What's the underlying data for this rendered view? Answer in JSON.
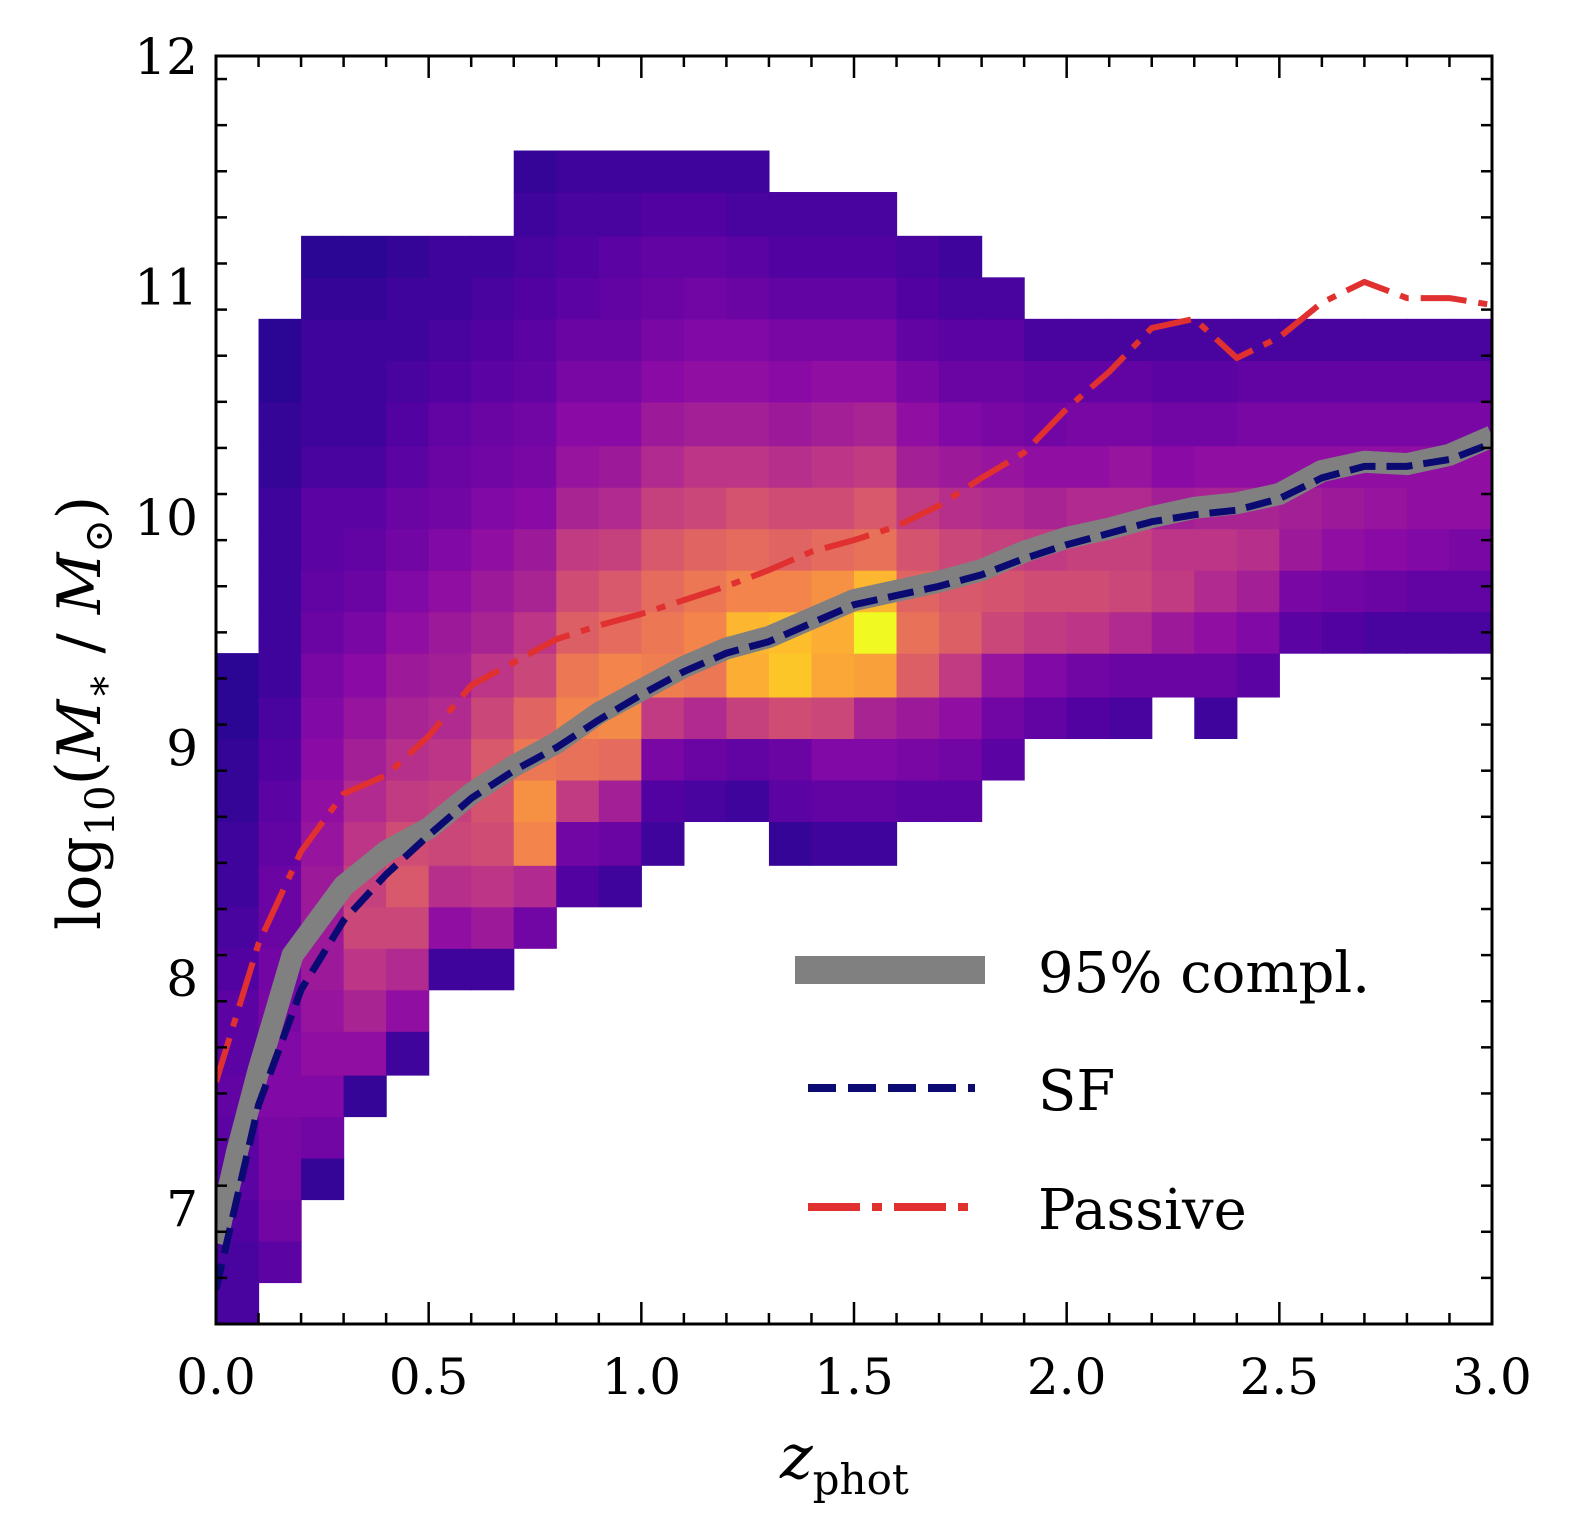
{
  "chart_data": {
    "type": "heatmap",
    "title": "",
    "xlabel": {
      "base": "z",
      "sub": "phot"
    },
    "ylabel": {
      "prefix": "log",
      "sub": "10",
      "open": "(",
      "m1": "M",
      "m1sub": "∗",
      "slash": " / ",
      "m2": "M",
      "m2sub": "⊙",
      "close": ")"
    },
    "xlim": [
      0.0,
      3.0
    ],
    "ylim": [
      6.5,
      12.0
    ],
    "xticks": [
      "0.0",
      "0.5",
      "1.0",
      "1.5",
      "2.0",
      "2.5",
      "3.0"
    ],
    "yticks": [
      "7",
      "8",
      "9",
      "10",
      "11",
      "12"
    ],
    "grid": false,
    "legend_position": "lower-right",
    "heatmap": {
      "x_bin_width": 0.1,
      "y_bins": [
        6.5,
        6.68,
        6.86,
        7.04,
        7.22,
        7.4,
        7.58,
        7.77,
        7.95,
        8.13,
        8.31,
        8.49,
        8.68,
        8.86,
        9.04,
        9.22,
        9.41,
        9.59,
        9.77,
        9.95,
        10.13,
        10.31,
        10.5,
        10.68,
        10.86,
        11.04,
        11.22,
        11.41
      ],
      "columns": [
        {
          "x": 0.0,
          "y_start": 0,
          "values": [
            0.12,
            0.12,
            0.14,
            0.16,
            0.16,
            0.18,
            0.16,
            0.16,
            0.14,
            0.12,
            0.1,
            0.1,
            0.08,
            0.08,
            0.06,
            0.06
          ]
        },
        {
          "x": 0.1,
          "y_start": 1,
          "values": [
            0.16,
            0.22,
            0.24,
            0.24,
            0.26,
            0.26,
            0.24,
            0.22,
            0.2,
            0.2,
            0.18,
            0.16,
            0.14,
            0.12,
            0.1,
            0.1,
            0.1,
            0.1,
            0.1,
            0.08,
            0.08,
            0.06,
            0.06
          ]
        },
        {
          "x": 0.2,
          "y_start": 3,
          "values": [
            0.08,
            0.22,
            0.26,
            0.3,
            0.32,
            0.34,
            0.34,
            0.34,
            0.32,
            0.3,
            0.28,
            0.26,
            0.24,
            0.2,
            0.18,
            0.16,
            0.16,
            0.12,
            0.1,
            0.1,
            0.1,
            0.08,
            0.06
          ]
        },
        {
          "x": 0.3,
          "y_start": 5,
          "values": [
            0.08,
            0.3,
            0.38,
            0.44,
            0.5,
            0.48,
            0.44,
            0.4,
            0.36,
            0.32,
            0.28,
            0.24,
            0.2,
            0.18,
            0.16,
            0.12,
            0.1,
            0.1,
            0.1,
            0.08,
            0.06
          ]
        },
        {
          "x": 0.4,
          "y_start": 6,
          "values": [
            0.1,
            0.3,
            0.4,
            0.5,
            0.56,
            0.52,
            0.46,
            0.42,
            0.38,
            0.34,
            0.3,
            0.26,
            0.22,
            0.2,
            0.16,
            0.14,
            0.12,
            0.1,
            0.1,
            0.08
          ]
        },
        {
          "x": 0.5,
          "y_start": 8,
          "values": [
            0.1,
            0.3,
            0.42,
            0.5,
            0.48,
            0.44,
            0.4,
            0.36,
            0.34,
            0.3,
            0.26,
            0.22,
            0.2,
            0.18,
            0.14,
            0.12,
            0.1,
            0.1
          ]
        },
        {
          "x": 0.6,
          "y_start": 8,
          "values": [
            0.1,
            0.34,
            0.44,
            0.52,
            0.54,
            0.56,
            0.5,
            0.44,
            0.38,
            0.34,
            0.3,
            0.26,
            0.22,
            0.2,
            0.16,
            0.14,
            0.12,
            0.1
          ]
        },
        {
          "x": 0.7,
          "y_start": 9,
          "values": [
            0.22,
            0.4,
            0.7,
            0.74,
            0.66,
            0.6,
            0.5,
            0.44,
            0.38,
            0.34,
            0.28,
            0.24,
            0.22,
            0.18,
            0.16,
            0.14,
            0.12,
            0.1,
            0.08
          ]
        },
        {
          "x": 0.8,
          "y_start": 10,
          "values": [
            0.14,
            0.22,
            0.46,
            0.64,
            0.7,
            0.66,
            0.58,
            0.52,
            0.46,
            0.38,
            0.32,
            0.28,
            0.24,
            0.2,
            0.16,
            0.14,
            0.12,
            0.1,
            0.08
          ]
        },
        {
          "x": 0.9,
          "y_start": 10,
          "values": [
            0.1,
            0.2,
            0.36,
            0.62,
            0.72,
            0.7,
            0.62,
            0.56,
            0.48,
            0.4,
            0.34,
            0.28,
            0.24,
            0.2,
            0.18,
            0.16,
            0.12,
            0.1
          ]
        },
        {
          "x": 1.0,
          "y_start": 11,
          "values": [
            0.1,
            0.14,
            0.24,
            0.46,
            0.68,
            0.66,
            0.62,
            0.56,
            0.48,
            0.4,
            0.34,
            0.28,
            0.24,
            0.2,
            0.18,
            0.14,
            0.1
          ]
        },
        {
          "x": 1.1,
          "y_start": 12,
          "values": [
            0.12,
            0.2,
            0.4,
            0.66,
            0.7,
            0.66,
            0.6,
            0.5,
            0.44,
            0.36,
            0.3,
            0.26,
            0.22,
            0.18,
            0.14,
            0.1
          ]
        },
        {
          "x": 1.2,
          "y_start": 12,
          "values": [
            0.1,
            0.18,
            0.48,
            0.82,
            0.84,
            0.7,
            0.62,
            0.54,
            0.44,
            0.36,
            0.3,
            0.26,
            0.2,
            0.16,
            0.12,
            0.1
          ]
        },
        {
          "x": 1.3,
          "y_start": 11,
          "values": [
            0.08,
            0.16,
            0.2,
            0.52,
            0.88,
            0.86,
            0.7,
            0.6,
            0.52,
            0.42,
            0.34,
            0.28,
            0.24,
            0.18,
            0.14,
            0.12
          ]
        },
        {
          "x": 1.4,
          "y_start": 11,
          "values": [
            0.1,
            0.18,
            0.26,
            0.5,
            0.8,
            0.82,
            0.74,
            0.62,
            0.52,
            0.44,
            0.36,
            0.3,
            0.24,
            0.18,
            0.14,
            0.12
          ]
        },
        {
          "x": 1.5,
          "y_start": 11,
          "values": [
            0.1,
            0.18,
            0.26,
            0.38,
            0.78,
            1.0,
            0.84,
            0.64,
            0.56,
            0.46,
            0.38,
            0.3,
            0.24,
            0.18,
            0.14,
            0.12
          ]
        },
        {
          "x": 1.6,
          "y_start": 12,
          "values": [
            0.16,
            0.24,
            0.34,
            0.58,
            0.64,
            0.6,
            0.54,
            0.46,
            0.36,
            0.3,
            0.24,
            0.18,
            0.14,
            0.12
          ]
        },
        {
          "x": 1.7,
          "y_start": 12,
          "values": [
            0.16,
            0.22,
            0.3,
            0.46,
            0.58,
            0.56,
            0.5,
            0.42,
            0.34,
            0.26,
            0.2,
            0.16,
            0.12,
            0.1
          ]
        },
        {
          "x": 1.8,
          "y_start": 13,
          "values": [
            0.16,
            0.22,
            0.32,
            0.5,
            0.54,
            0.48,
            0.4,
            0.32,
            0.24,
            0.2,
            0.16,
            0.12
          ]
        },
        {
          "x": 1.9,
          "y_start": 14,
          "values": [
            0.18,
            0.26,
            0.46,
            0.52,
            0.46,
            0.38,
            0.3,
            0.22,
            0.18,
            0.12
          ]
        },
        {
          "x": 2.0,
          "y_start": 14,
          "values": [
            0.14,
            0.22,
            0.44,
            0.52,
            0.48,
            0.4,
            0.3,
            0.24,
            0.18,
            0.12
          ]
        },
        {
          "x": 2.1,
          "y_start": 14,
          "values": [
            0.12,
            0.2,
            0.4,
            0.5,
            0.48,
            0.4,
            0.32,
            0.24,
            0.18,
            0.12
          ]
        },
        {
          "x": 2.2,
          "y_start": 15,
          "values": [
            0.2,
            0.34,
            0.46,
            0.44,
            0.36,
            0.28,
            0.22,
            0.16,
            0.12
          ]
        },
        {
          "x": 2.3,
          "y_start": 14,
          "values": [
            0.1,
            0.2,
            0.3,
            0.4,
            0.44,
            0.38,
            0.3,
            0.22,
            0.16,
            0.12
          ]
        },
        {
          "x": 2.4,
          "y_start": 15,
          "values": [
            0.16,
            0.26,
            0.36,
            0.42,
            0.38,
            0.3,
            0.24,
            0.18,
            0.12
          ]
        },
        {
          "x": 2.5,
          "y_start": 16,
          "values": [
            0.16,
            0.24,
            0.34,
            0.36,
            0.3,
            0.24,
            0.18,
            0.12
          ]
        },
        {
          "x": 2.6,
          "y_start": 16,
          "values": [
            0.14,
            0.22,
            0.3,
            0.34,
            0.3,
            0.24,
            0.18,
            0.12
          ]
        },
        {
          "x": 2.7,
          "y_start": 16,
          "values": [
            0.12,
            0.2,
            0.28,
            0.32,
            0.3,
            0.24,
            0.18,
            0.12
          ]
        },
        {
          "x": 2.8,
          "y_start": 16,
          "values": [
            0.12,
            0.18,
            0.26,
            0.3,
            0.3,
            0.24,
            0.18,
            0.12
          ]
        },
        {
          "x": 2.9,
          "y_start": 16,
          "values": [
            0.12,
            0.18,
            0.24,
            0.3,
            0.3,
            0.24,
            0.18,
            0.12
          ]
        }
      ]
    },
    "series": [
      {
        "name": "95% compl.",
        "color": "#808080",
        "style": "solid-thick",
        "x": [
          0.0,
          0.05,
          0.1,
          0.18,
          0.3,
          0.4,
          0.5,
          0.6,
          0.7,
          0.8,
          0.9,
          1.0,
          1.1,
          1.2,
          1.3,
          1.4,
          1.5,
          1.6,
          1.7,
          1.8,
          1.9,
          2.0,
          2.1,
          2.2,
          2.3,
          2.4,
          2.5,
          2.6,
          2.7,
          2.8,
          2.9,
          3.0
        ],
        "y": [
          6.85,
          7.25,
          7.6,
          8.1,
          8.4,
          8.55,
          8.65,
          8.8,
          8.92,
          9.02,
          9.15,
          9.25,
          9.35,
          9.43,
          9.48,
          9.56,
          9.64,
          9.68,
          9.72,
          9.77,
          9.85,
          9.91,
          9.95,
          10.0,
          10.04,
          10.06,
          10.1,
          10.2,
          10.24,
          10.23,
          10.27,
          10.35
        ]
      },
      {
        "name": "SF",
        "color": "#0a0a72",
        "style": "dashed",
        "x": [
          0.0,
          0.05,
          0.1,
          0.2,
          0.3,
          0.4,
          0.5,
          0.6,
          0.7,
          0.8,
          0.9,
          1.0,
          1.1,
          1.2,
          1.3,
          1.4,
          1.5,
          1.6,
          1.7,
          1.8,
          1.9,
          2.0,
          2.1,
          2.2,
          2.3,
          2.4,
          2.5,
          2.6,
          2.7,
          2.8,
          2.9,
          3.0
        ],
        "y": [
          6.65,
          7.05,
          7.45,
          7.95,
          8.25,
          8.45,
          8.62,
          8.78,
          8.9,
          9.0,
          9.12,
          9.23,
          9.33,
          9.41,
          9.46,
          9.54,
          9.62,
          9.66,
          9.7,
          9.75,
          9.82,
          9.88,
          9.93,
          9.98,
          10.01,
          10.03,
          10.08,
          10.17,
          10.22,
          10.22,
          10.25,
          10.32
        ]
      },
      {
        "name": "Passive",
        "color": "#e03030",
        "style": "dashdot",
        "x": [
          0.0,
          0.05,
          0.1,
          0.2,
          0.3,
          0.4,
          0.5,
          0.6,
          0.7,
          0.8,
          0.9,
          1.0,
          1.1,
          1.2,
          1.3,
          1.4,
          1.5,
          1.6,
          1.7,
          1.8,
          1.9,
          2.0,
          2.1,
          2.2,
          2.3,
          2.4,
          2.5,
          2.6,
          2.7,
          2.8,
          2.9,
          3.0
        ],
        "y": [
          7.55,
          7.85,
          8.15,
          8.55,
          8.8,
          8.88,
          9.05,
          9.27,
          9.37,
          9.47,
          9.53,
          9.58,
          9.64,
          9.7,
          9.77,
          9.85,
          9.9,
          9.96,
          10.05,
          10.17,
          10.28,
          10.47,
          10.63,
          10.82,
          10.86,
          10.69,
          10.78,
          10.93,
          11.02,
          10.95,
          10.95,
          10.92
        ]
      }
    ],
    "colormap": "plasma"
  }
}
